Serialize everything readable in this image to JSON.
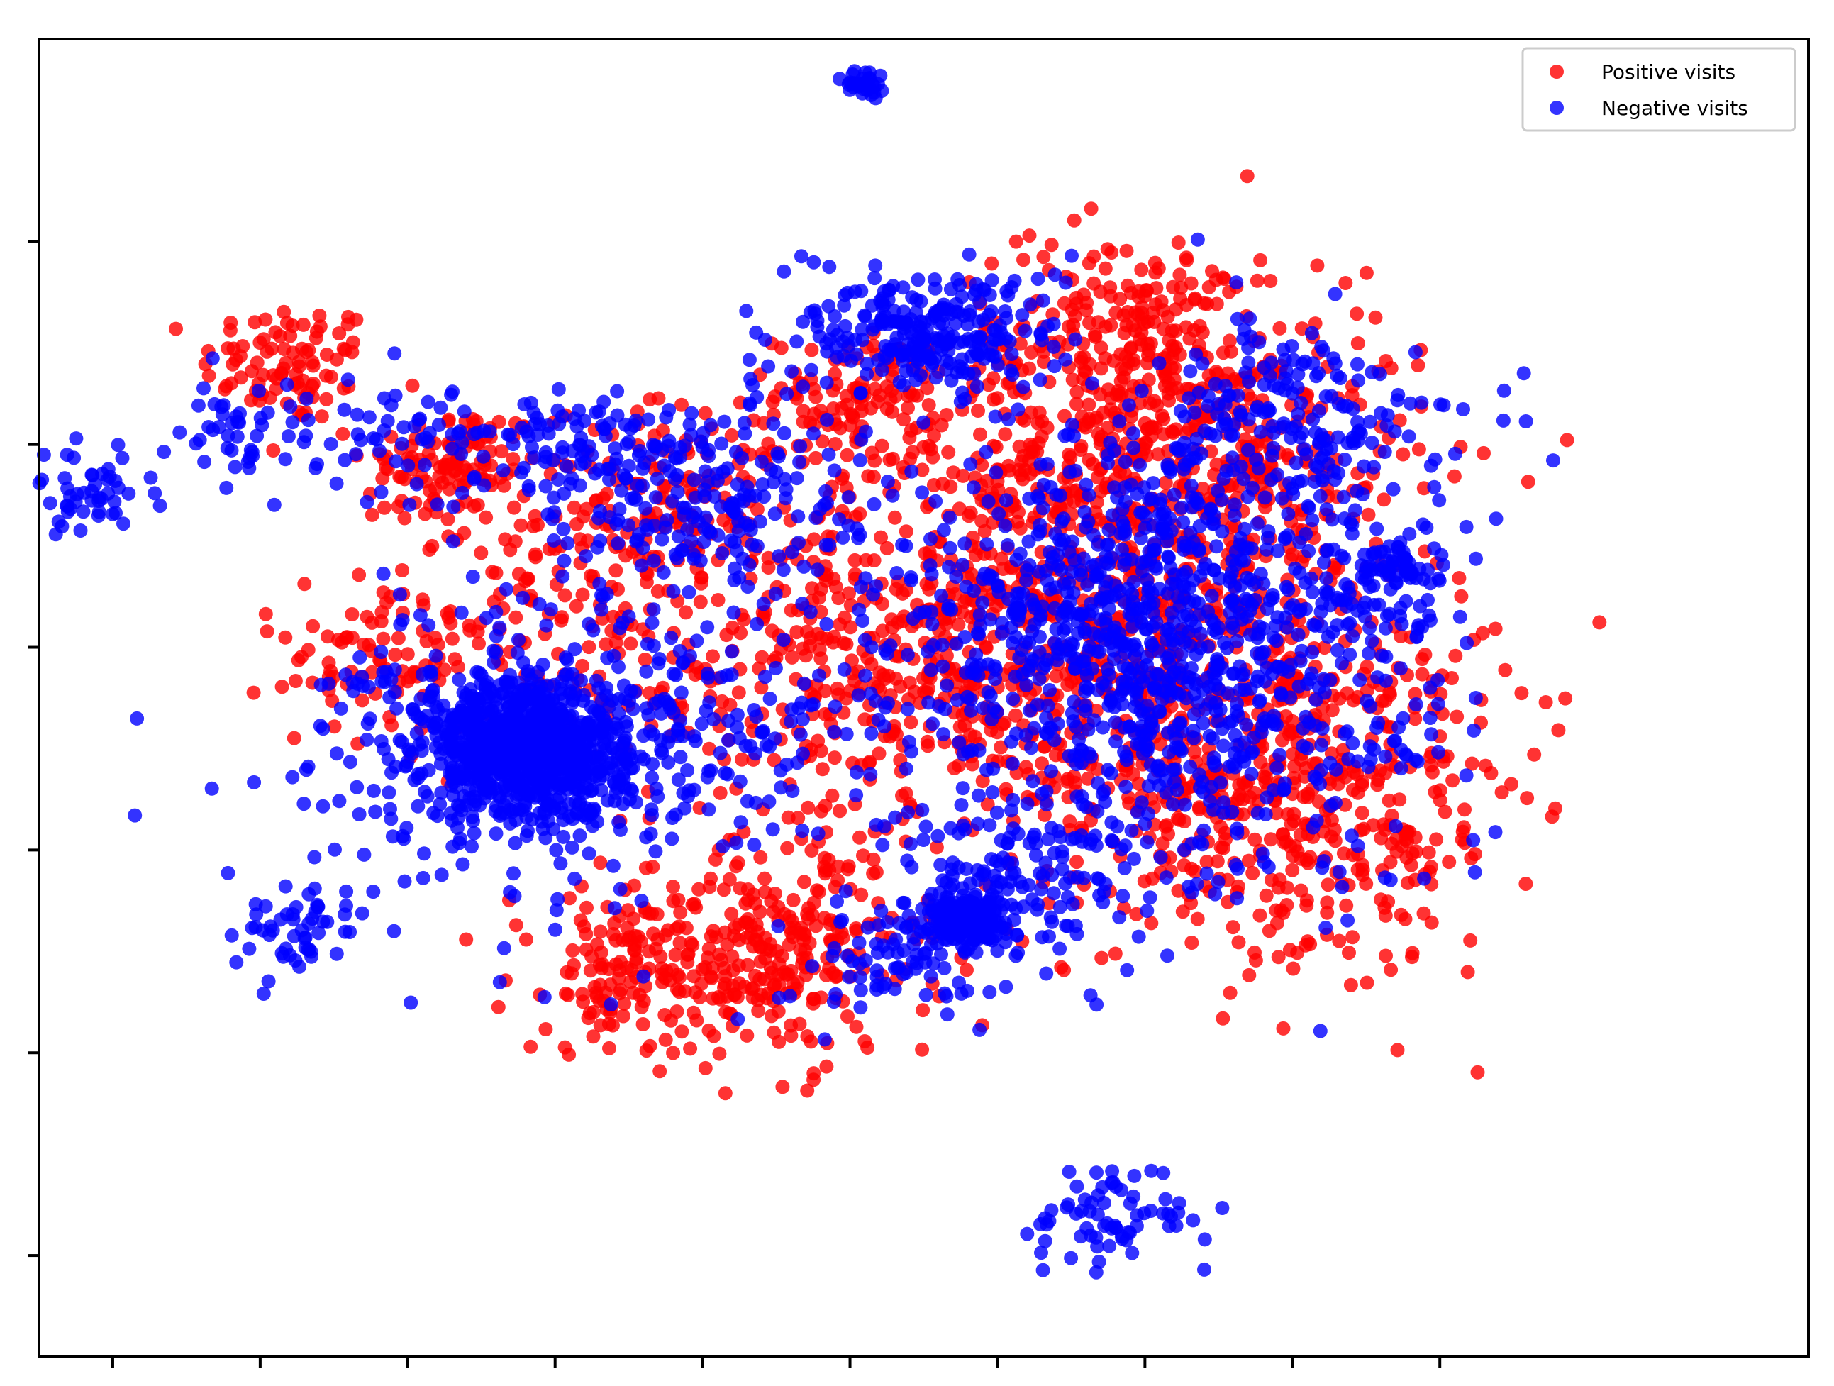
{
  "chart_data": {
    "type": "scatter",
    "title": "",
    "xlabel": "",
    "ylabel": "",
    "xlim": [
      -1.0,
      11.0
    ],
    "ylim": [
      -3.0,
      10.0
    ],
    "x_ticks": [
      -0.5,
      0.5,
      1.5,
      2.5,
      3.5,
      4.5,
      5.5,
      6.5,
      7.5,
      8.5
    ],
    "y_ticks": [
      -2.0,
      0.0,
      2.0,
      4.0,
      6.0,
      8.0
    ],
    "show_tick_labels": false,
    "grid": false,
    "legend_position": "upper right",
    "series": [
      {
        "name": "Positive visits",
        "color": "#ff0000",
        "clusters": [
          {
            "cx": 0.7,
            "cy": 6.8,
            "spread": 0.3,
            "n": 90
          },
          {
            "cx": 1.8,
            "cy": 5.8,
            "spread": 0.3,
            "n": 110
          },
          {
            "cx": 1.2,
            "cy": 3.8,
            "spread": 0.3,
            "n": 50
          },
          {
            "cx": 2.3,
            "cy": 4.3,
            "spread": 0.7,
            "n": 160
          },
          {
            "cx": 3.4,
            "cy": 5.4,
            "spread": 0.5,
            "n": 150
          },
          {
            "cx": 4.6,
            "cy": 6.5,
            "spread": 0.3,
            "n": 110
          },
          {
            "cx": 5.5,
            "cy": 4.3,
            "spread": 0.9,
            "n": 450
          },
          {
            "cx": 6.8,
            "cy": 5.7,
            "spread": 0.8,
            "n": 450
          },
          {
            "cx": 7.0,
            "cy": 3.2,
            "spread": 0.9,
            "n": 450
          },
          {
            "cx": 6.4,
            "cy": 6.9,
            "spread": 0.6,
            "n": 280
          },
          {
            "cx": 4.0,
            "cy": 1.0,
            "spread": 0.55,
            "n": 280
          },
          {
            "cx": 3.0,
            "cy": 0.8,
            "spread": 0.4,
            "n": 130
          },
          {
            "cx": 7.6,
            "cy": 2.2,
            "spread": 0.7,
            "n": 260
          },
          {
            "cx": 4.4,
            "cy": 3.6,
            "spread": 0.7,
            "n": 200
          }
        ]
      },
      {
        "name": "Negative visits",
        "color": "#0000ff",
        "clusters": [
          {
            "cx": -0.7,
            "cy": 5.5,
            "spread": 0.2,
            "n": 50
          },
          {
            "cx": 0.4,
            "cy": 6.1,
            "spread": 0.25,
            "n": 50
          },
          {
            "cx": 1.5,
            "cy": 6.1,
            "spread": 0.3,
            "n": 55
          },
          {
            "cx": 2.6,
            "cy": 6.0,
            "spread": 0.3,
            "n": 60
          },
          {
            "cx": 2.3,
            "cy": 3.0,
            "spread": 0.35,
            "n": 900
          },
          {
            "cx": 2.3,
            "cy": 3.0,
            "spread": 0.9,
            "n": 200
          },
          {
            "cx": 3.4,
            "cy": 5.5,
            "spread": 0.55,
            "n": 230
          },
          {
            "cx": 4.8,
            "cy": 7.1,
            "spread": 0.3,
            "n": 130
          },
          {
            "cx": 5.3,
            "cy": 7.1,
            "spread": 0.35,
            "n": 140
          },
          {
            "cx": 6.0,
            "cy": 4.4,
            "spread": 0.75,
            "n": 380
          },
          {
            "cx": 6.8,
            "cy": 3.3,
            "spread": 0.9,
            "n": 480
          },
          {
            "cx": 7.2,
            "cy": 5.0,
            "spread": 0.8,
            "n": 320
          },
          {
            "cx": 7.5,
            "cy": 6.3,
            "spread": 0.45,
            "n": 140
          },
          {
            "cx": 5.6,
            "cy": 1.8,
            "spread": 0.4,
            "n": 130
          },
          {
            "cx": 5.3,
            "cy": 1.3,
            "spread": 0.12,
            "n": 220
          },
          {
            "cx": 6.3,
            "cy": -1.6,
            "spread": 0.3,
            "n": 70
          },
          {
            "cx": 0.7,
            "cy": 1.2,
            "spread": 0.2,
            "n": 50
          },
          {
            "cx": 4.9,
            "cy": 0.9,
            "spread": 0.3,
            "n": 80
          },
          {
            "cx": 8.2,
            "cy": 4.8,
            "spread": 0.1,
            "n": 40
          },
          {
            "cx": 3.6,
            "cy": 3.3,
            "spread": 0.55,
            "n": 120
          },
          {
            "cx": 4.6,
            "cy": 9.55,
            "spread": 0.06,
            "n": 30
          },
          {
            "cx": 1.3,
            "cy": 3.7,
            "spread": 0.18,
            "n": 20
          }
        ]
      }
    ],
    "legend": [
      {
        "label": "Positive visits",
        "color": "#ff0000"
      },
      {
        "label": "Negative visits",
        "color": "#0000ff"
      }
    ]
  }
}
